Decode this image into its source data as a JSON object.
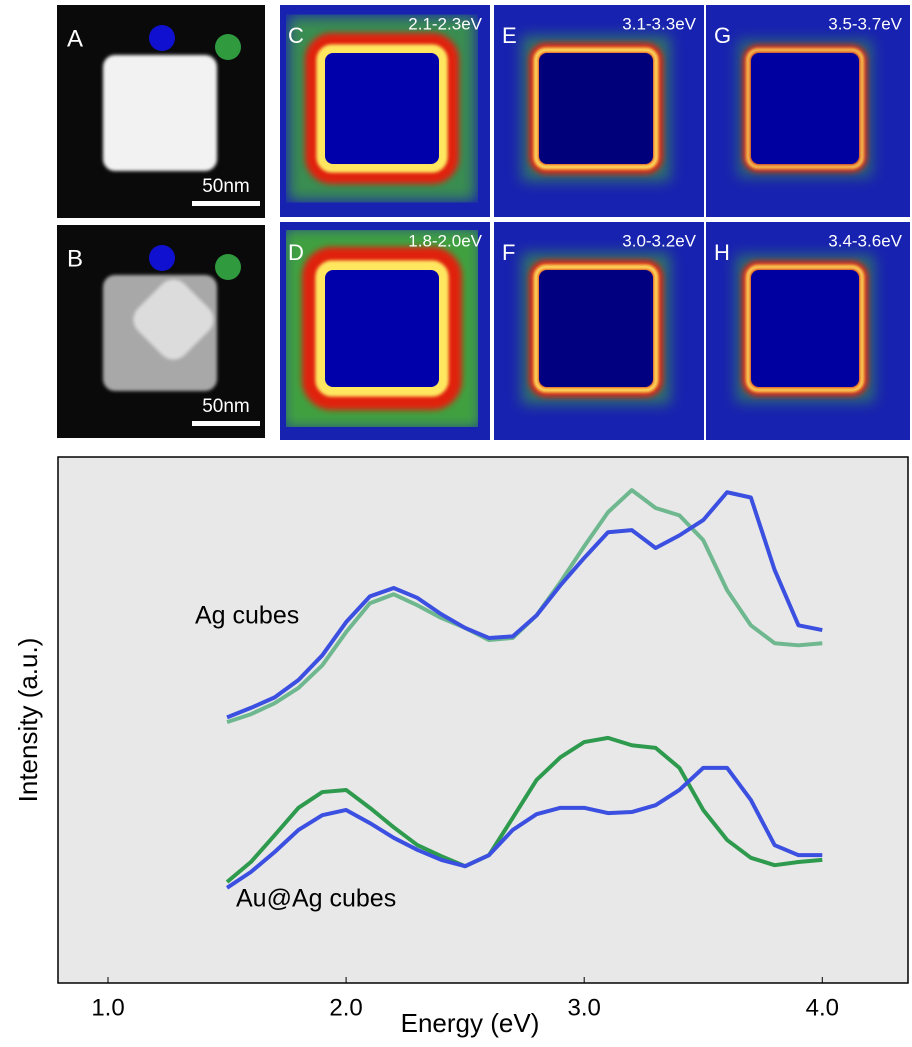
{
  "panels": [
    {
      "label": "A",
      "scale": "50nm"
    },
    {
      "label": "B",
      "scale": "50nm"
    }
  ],
  "maps": [
    {
      "label": "C",
      "range": "2.1-2.3eV"
    },
    {
      "label": "E",
      "range": "3.1-3.3eV"
    },
    {
      "label": "G",
      "range": "3.5-3.7eV"
    },
    {
      "label": "D",
      "range": "1.8-2.0eV"
    },
    {
      "label": "F",
      "range": "3.0-3.2eV"
    },
    {
      "label": "H",
      "range": "3.4-3.6eV"
    }
  ],
  "chart_data": {
    "type": "line",
    "x_label": "Energy (eV)",
    "y_label": "Intensity (a.u.)",
    "annotations": [
      "Ag cubes",
      "Au@Ag cubes"
    ],
    "xlim": [
      0.79,
      4.36
    ],
    "ylim": [
      0,
      100
    ],
    "xticks": [
      {
        "value": 1,
        "label": "1.0"
      },
      {
        "value": 2,
        "label": "2.0"
      },
      {
        "value": 3,
        "label": "3.0"
      },
      {
        "value": 4,
        "label": "4.0"
      }
    ],
    "x": [
      1.5,
      1.6,
      1.7,
      1.8,
      1.9,
      2.0,
      2.1,
      2.2,
      2.3,
      2.4,
      2.5,
      2.6,
      2.7,
      2.8,
      2.9,
      3.0,
      3.1,
      3.2,
      3.3,
      3.4,
      3.5,
      3.6,
      3.7,
      3.8,
      3.9,
      4.0
    ],
    "series": [
      {
        "color": "#6fb88f",
        "values": [
          49.6,
          51.1,
          53.2,
          56.1,
          60.4,
          66.7,
          72.2,
          73.9,
          71.8,
          69.4,
          67.5,
          65.2,
          65.6,
          69.9,
          76.2,
          83.0,
          89.5,
          93.7,
          90.3,
          88.9,
          84.2,
          74.7,
          68.0,
          64.6,
          64.2,
          64.6
        ]
      },
      {
        "color": "#3b4fe0",
        "values": [
          50.5,
          52.3,
          54.3,
          57.6,
          62.3,
          68.6,
          73.5,
          75.1,
          73.2,
          70.1,
          67.5,
          65.6,
          65.9,
          69.9,
          75.6,
          80.8,
          85.7,
          86.1,
          82.7,
          85.1,
          88.0,
          93.3,
          92.3,
          78.5,
          68.0,
          67.1
        ]
      },
      {
        "color": "#2e9a4e",
        "values": [
          19.2,
          23.0,
          28.1,
          33.3,
          36.3,
          36.7,
          33.3,
          29.6,
          26.2,
          24.1,
          22.2,
          24.3,
          31.4,
          38.6,
          42.9,
          45.8,
          46.6,
          45.2,
          44.7,
          40.9,
          32.9,
          27.2,
          23.8,
          22.4,
          23.0,
          23.4
        ]
      },
      {
        "color": "#3b4fe0",
        "values": [
          18.1,
          21.1,
          24.9,
          29.1,
          31.9,
          32.9,
          30.4,
          27.6,
          25.3,
          23.4,
          22.2,
          24.3,
          29.1,
          32.1,
          33.3,
          33.3,
          32.3,
          32.5,
          33.8,
          36.7,
          40.9,
          40.9,
          34.8,
          26.2,
          24.3,
          24.3
        ]
      }
    ]
  }
}
